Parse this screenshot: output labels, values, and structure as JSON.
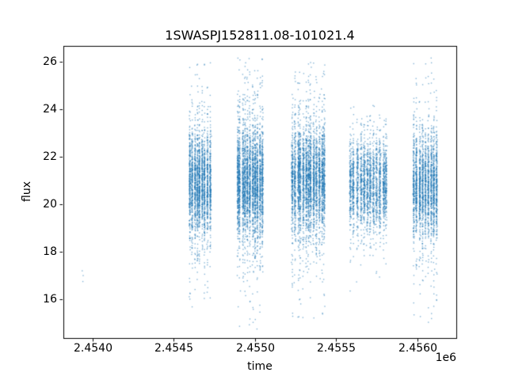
{
  "chart_data": {
    "type": "scatter",
    "title": "1SWASPJ152811.08-101021.4",
    "xlabel": "time",
    "ylabel": "flux",
    "x_offset": "1e6",
    "xlim": [
      2.45382,
      2.45624
    ],
    "ylim": [
      14.37,
      26.67
    ],
    "xticks": [
      2.454,
      2.4545,
      2.455,
      2.4555,
      2.456
    ],
    "yticks": [
      16,
      18,
      20,
      22,
      24,
      26
    ],
    "grid": false,
    "legend": "none",
    "point_color": "#1f77b4",
    "point_alpha": 0.55,
    "isolated_points": [
      [
        2.453936,
        17.2
      ],
      [
        2.45394,
        16.75
      ],
      [
        2.453942,
        17.0
      ]
    ],
    "clusters": [
      {
        "x_center": 2.45466,
        "x_spread": 0.00014,
        "nights": 9,
        "n": 2400,
        "y_mean": 20.9,
        "y_core_sd": 1.05,
        "y_tail_sd": 2.3,
        "tail_frac": 0.18,
        "y_min": 15.3,
        "y_max": 26.2
      },
      {
        "x_center": 2.45497,
        "x_spread": 0.00017,
        "nights": 11,
        "n": 3200,
        "y_mean": 20.9,
        "y_core_sd": 1.1,
        "y_tail_sd": 2.5,
        "tail_frac": 0.2,
        "y_min": 14.7,
        "y_max": 26.2
      },
      {
        "x_center": 2.45533,
        "x_spread": 0.00021,
        "nights": 13,
        "n": 3400,
        "y_mean": 21.0,
        "y_core_sd": 1.1,
        "y_tail_sd": 2.4,
        "tail_frac": 0.2,
        "y_min": 15.0,
        "y_max": 26.0
      },
      {
        "x_center": 2.4557,
        "x_spread": 0.00024,
        "nights": 12,
        "n": 2300,
        "y_mean": 20.8,
        "y_core_sd": 0.95,
        "y_tail_sd": 1.9,
        "tail_frac": 0.15,
        "y_min": 16.3,
        "y_max": 24.2
      },
      {
        "x_center": 2.45605,
        "x_spread": 0.00016,
        "nights": 9,
        "n": 2300,
        "y_mean": 20.7,
        "y_core_sd": 1.0,
        "y_tail_sd": 2.3,
        "tail_frac": 0.18,
        "y_min": 14.8,
        "y_max": 26.2
      }
    ]
  }
}
